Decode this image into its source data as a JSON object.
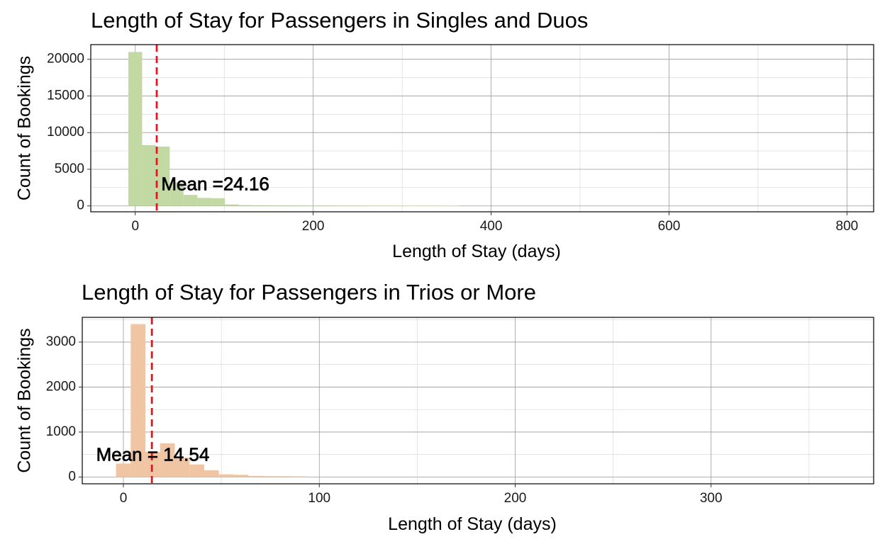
{
  "chart_data": [
    {
      "type": "bar",
      "subtype": "histogram",
      "title": "Length of Stay for Passengers in Singles and Duos",
      "xlabel": "Length of Stay (days)",
      "ylabel": "Count of Bookings",
      "xlim": [
        -50,
        830
      ],
      "ylim": [
        -800,
        22000
      ],
      "x_ticks": [
        0,
        200,
        400,
        600,
        800
      ],
      "x_tick_labels": [
        "0",
        "200",
        "400",
        "600",
        "800"
      ],
      "y_ticks": [
        0,
        5000,
        10000,
        15000,
        20000
      ],
      "y_tick_labels": [
        "0",
        "5000",
        "10000",
        "15000",
        "20000"
      ],
      "bin_width": 15.5,
      "bins_start": [
        -7.75,
        7.75,
        23.25,
        38.75,
        54.25,
        69.75,
        85.25,
        100.75,
        116.25,
        131.75,
        147.25,
        162.75,
        178.25,
        193.75,
        209.25,
        224.75,
        240.25,
        255.75,
        271.25,
        286.75,
        302.25,
        317.75,
        333.25,
        348.75
      ],
      "values": [
        21000,
        8300,
        8100,
        3200,
        1500,
        1100,
        1050,
        200,
        110,
        90,
        80,
        70,
        60,
        50,
        45,
        40,
        35,
        30,
        28,
        25,
        22,
        20,
        18,
        15
      ],
      "bar_color": "#c3d9a4",
      "mean": 24.16,
      "mean_line_color": "#e8141c",
      "annotation": "Mean =24.16",
      "annotation_x": 90,
      "annotation_y": 2800,
      "grid": true
    },
    {
      "type": "bar",
      "subtype": "histogram",
      "title": "Length of Stay for Passengers in Trios or More",
      "xlabel": "Length of Stay (days)",
      "ylabel": "Count of Bookings",
      "xlim": [
        -21,
        383
      ],
      "ylim": [
        -150,
        3550
      ],
      "x_ticks": [
        0,
        100,
        200,
        300
      ],
      "x_tick_labels": [
        "0",
        "100",
        "200",
        "300"
      ],
      "y_ticks": [
        0,
        1000,
        2000,
        3000
      ],
      "y_tick_labels": [
        "0",
        "1000",
        "2000",
        "3000"
      ],
      "bin_width": 7.5,
      "bins_start": [
        -3.75,
        3.75,
        11.25,
        18.75,
        26.25,
        33.75,
        41.25,
        48.75,
        56.25,
        63.75,
        71.25,
        78.75,
        86.25
      ],
      "values": [
        300,
        3400,
        560,
        750,
        430,
        280,
        150,
        60,
        50,
        25,
        20,
        18,
        15
      ],
      "bar_color": "#f0c5a4",
      "mean": 14.54,
      "mean_line_color": "#e8141c",
      "annotation": "Mean = 14.54",
      "annotation_x": 15,
      "annotation_y": 470,
      "grid": true
    }
  ]
}
